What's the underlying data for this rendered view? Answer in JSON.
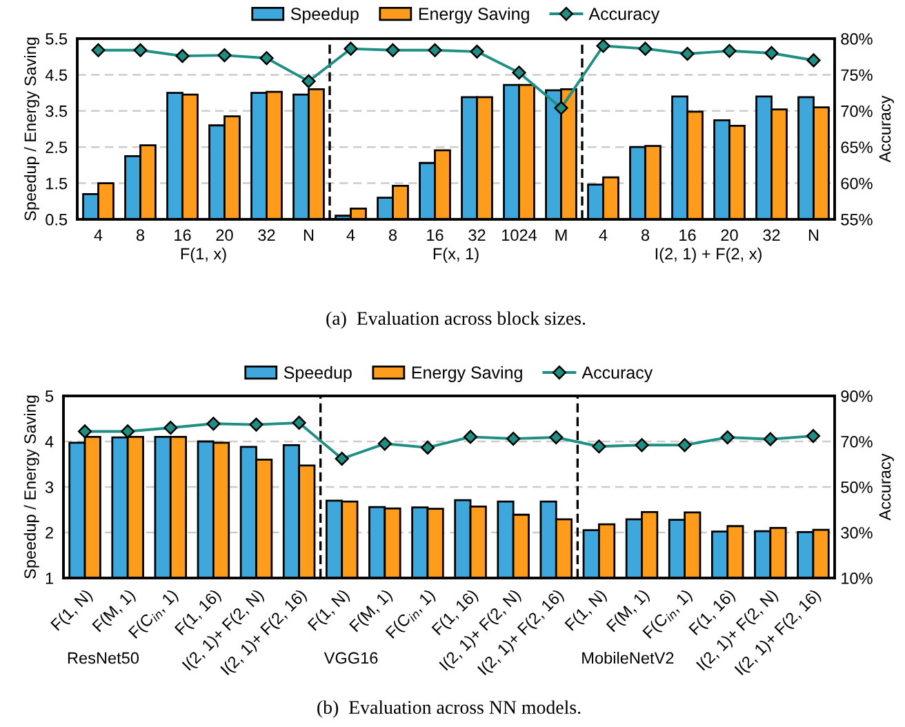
{
  "chart_data": [
    {
      "type": "bar",
      "categories": [
        "4",
        "8",
        "16",
        "20",
        "32",
        "N",
        "4",
        "8",
        "16",
        "32",
        "1024",
        "M",
        "4",
        "8",
        "16",
        "20",
        "32",
        "N"
      ],
      "ylabel": "Speedup / Energy Saving",
      "y2label": "Accuracy",
      "ylim": [
        0.5,
        5.5
      ],
      "yticks": [
        0.5,
        1.5,
        2.5,
        3.5,
        4.5,
        5.5
      ],
      "y2lim": [
        55,
        80
      ],
      "y2ticks": [
        {
          "value": 55,
          "label": "55%"
        },
        {
          "value": 60,
          "label": "60%"
        },
        {
          "value": 65,
          "label": "65%"
        },
        {
          "value": 70,
          "label": "70%"
        },
        {
          "value": 75,
          "label": "75%"
        },
        {
          "value": 80,
          "label": "80%"
        }
      ],
      "grid": "y",
      "marker": "diamond",
      "legend": "top",
      "annotations": [
        "F(1, x)",
        "F(x, 1)",
        "I(2, 1) + F(2, x)",
        "(a)  Evaluation across block sizes."
      ],
      "series": [
        {
          "name": "Speedup",
          "color": "#3ea8dc",
          "values": [
            1.2,
            2.25,
            4.0,
            3.1,
            4.0,
            3.95,
            0.6,
            1.1,
            2.06,
            3.88,
            4.22,
            4.07,
            1.46,
            2.5,
            3.9,
            3.24,
            3.9,
            3.88
          ]
        },
        {
          "name": "Energy Saving",
          "color": "#ff9c1c",
          "values": [
            1.5,
            2.55,
            3.95,
            3.35,
            4.03,
            4.1,
            0.8,
            1.43,
            2.41,
            3.88,
            4.22,
            4.1,
            1.66,
            2.53,
            3.48,
            3.09,
            3.54,
            3.6
          ]
        },
        {
          "name": "Accuracy",
          "type": "line",
          "axis": "y2",
          "color": "#1f8f84",
          "values": [
            78.4,
            78.4,
            77.6,
            77.7,
            77.3,
            74.1,
            78.6,
            78.4,
            78.4,
            78.2,
            75.3,
            70.4,
            79.0,
            78.6,
            77.9,
            78.3,
            78.0,
            77.0
          ]
        }
      ]
    },
    {
      "type": "bar",
      "categories": [
        "F(1, N)",
        "F(M, 1)",
        "F(C$_{in}$, 1)",
        "F(1, 16)",
        "I(2, 1)+ F(2, N)",
        "I(2, 1)+ F(2, 16)",
        "F(1, N)",
        "F(M, 1)",
        "F(C$_{in}$, 1)",
        "F(1, 16)",
        "I(2, 1)+ F(2, N)",
        "I(2, 1)+ F(2, 16)",
        "F(1, N)",
        "F(M, 1)",
        "F(C$_{in}$, 1)",
        "F(1, 16)",
        "I(2, 1)+ F(2, N)",
        "I(2, 1)+ F(2, 16)"
      ],
      "ylabel": "Speedup / Energy Saving",
      "y2label": "Accuracy",
      "ylim": [
        1,
        5
      ],
      "yticks": [
        1,
        2,
        3,
        4,
        5
      ],
      "y2lim": [
        10,
        90
      ],
      "y2ticks": [
        {
          "value": 10,
          "label": "10%"
        },
        {
          "value": 30,
          "label": "30%"
        },
        {
          "value": 50,
          "label": "50%"
        },
        {
          "value": 70,
          "label": "70%"
        },
        {
          "value": 90,
          "label": "90%"
        }
      ],
      "grid": "y",
      "marker": "diamond",
      "legend": "top",
      "annotations": [
        "ResNet50",
        "VGG16",
        "MobileNetV2",
        "(b)  Evaluation across NN models."
      ],
      "series": [
        {
          "name": "Speedup",
          "color": "#3ea8dc",
          "values": [
            3.97,
            4.09,
            4.1,
            4.0,
            3.88,
            3.92,
            2.7,
            2.56,
            2.55,
            2.71,
            2.68,
            2.68,
            2.05,
            2.29,
            2.28,
            2.02,
            2.03,
            2.01
          ]
        },
        {
          "name": "Energy Saving",
          "color": "#ff9c1c",
          "values": [
            4.1,
            4.1,
            4.1,
            3.97,
            3.6,
            3.47,
            2.68,
            2.53,
            2.52,
            2.57,
            2.39,
            2.29,
            2.18,
            2.45,
            2.44,
            2.14,
            2.1,
            2.06
          ]
        },
        {
          "name": "Accuracy",
          "type": "line",
          "axis": "y2",
          "color": "#1f8f84",
          "values": [
            74.4,
            74.4,
            76.0,
            77.8,
            77.4,
            78.2,
            62.4,
            69.0,
            67.3,
            72.0,
            71.2,
            71.8,
            67.8,
            68.4,
            68.4,
            71.8,
            71.0,
            72.4
          ]
        }
      ]
    }
  ]
}
